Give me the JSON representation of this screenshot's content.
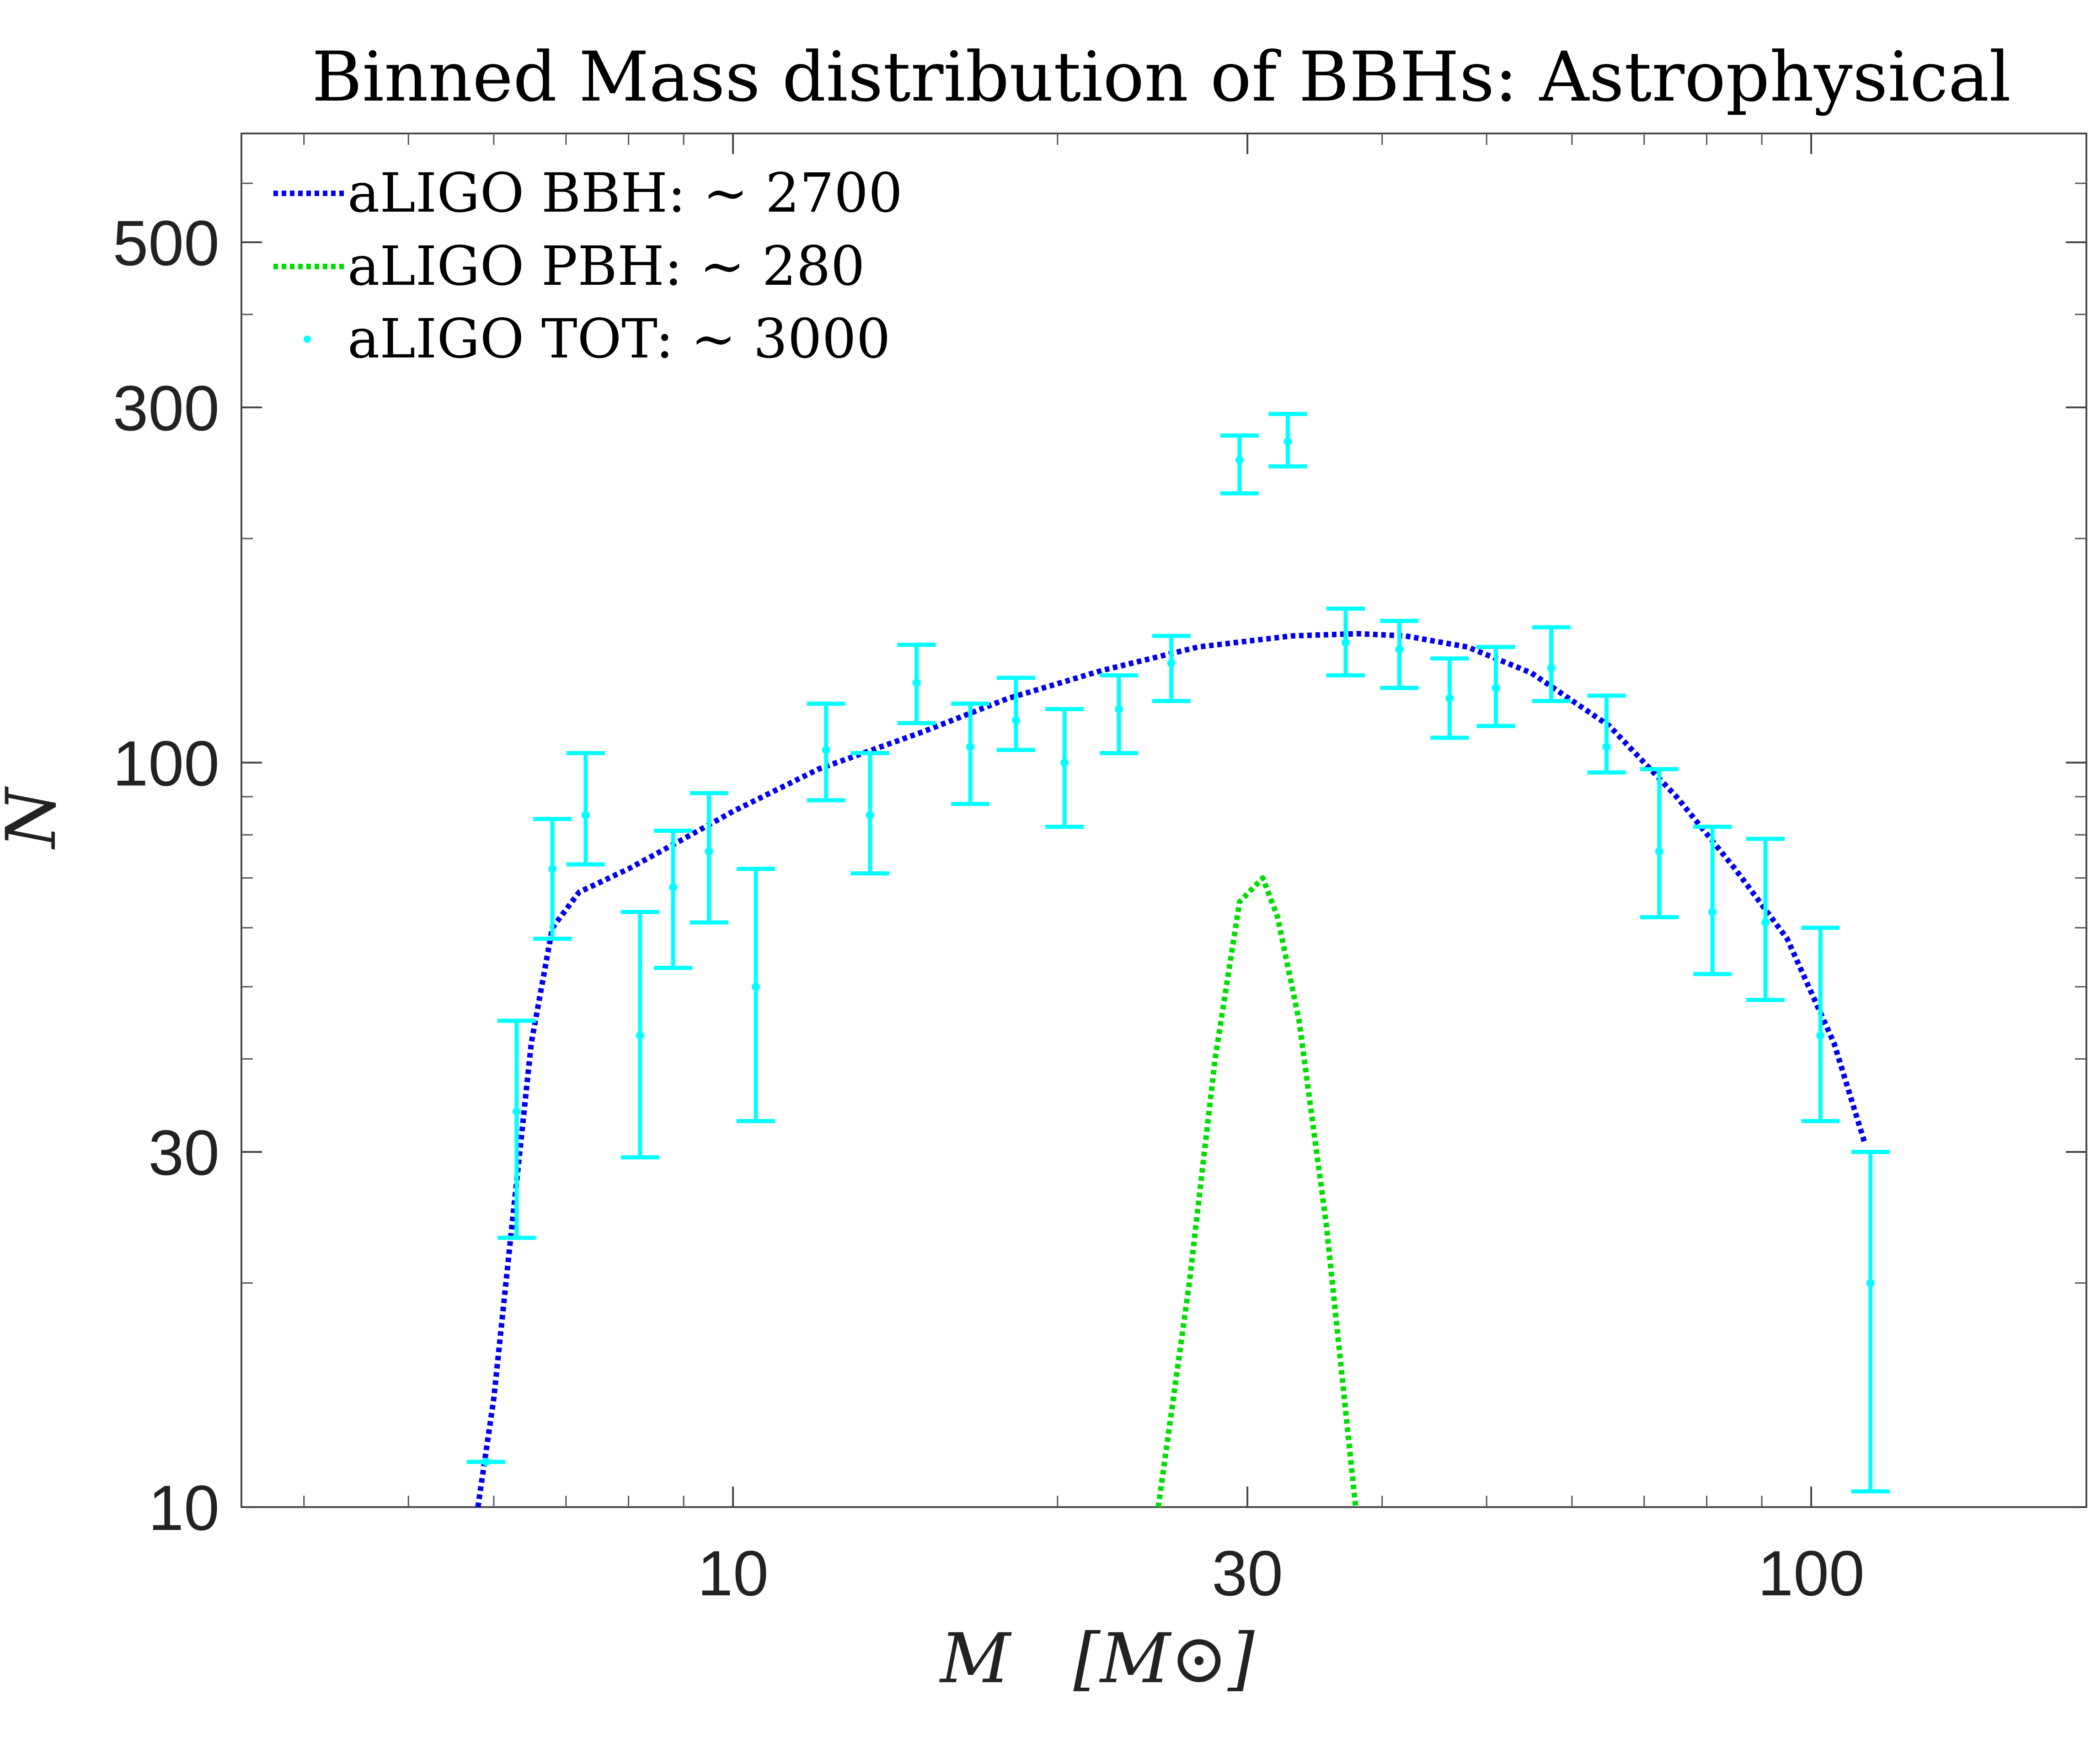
{
  "chart_data": {
    "type": "line",
    "title": "Binned Mass distribution of BBHs: Astrophysical",
    "xlabel": "M  [M⊙]",
    "xlabel_symbol": "M",
    "xlabel_unit": "[M⊙]",
    "ylabel": "N",
    "xscale": "log",
    "yscale": "log",
    "xlim": [
      3.5,
      180
    ],
    "ylim": [
      10,
      700
    ],
    "x_ticks": [
      10,
      30,
      100
    ],
    "x_tick_labels": [
      "10",
      "30",
      "100"
    ],
    "y_ticks": [
      10,
      30,
      100,
      300,
      500
    ],
    "y_tick_labels": [
      "10",
      "30",
      "100",
      "300",
      "500"
    ],
    "legend_position": "top-left",
    "series": [
      {
        "name": "aLIGO BBH: ∼ 2700",
        "style": "dotted-line",
        "color": "#0000ee",
        "x": [
          5.8,
          6.0,
          6.2,
          6.5,
          6.8,
          7.2,
          8.0,
          9.0,
          10.0,
          12.0,
          15.0,
          18.0,
          22.0,
          27.0,
          33.0,
          38.0,
          42.0,
          48.0,
          55.0,
          65.0,
          75.0,
          85.0,
          95.0,
          105.0,
          112.0
        ],
        "y": [
          10,
          14,
          22,
          42,
          60,
          67,
          72,
          79,
          86,
          98,
          110,
          122,
          133,
          143,
          148,
          149,
          148,
          143,
          132,
          112,
          90,
          72,
          58,
          42,
          31
        ]
      },
      {
        "name": "aLIGO PBH: ∼ 280",
        "style": "dotted-line",
        "color": "#00dd00",
        "x": [
          24.8,
          26.5,
          28.0,
          29.5,
          31.0,
          32.0,
          33.5,
          35.5,
          37.8
        ],
        "y": [
          10,
          20,
          40,
          65,
          70,
          62,
          45,
          24,
          10
        ]
      },
      {
        "name": "aLIGO TOT: ∼ 3000",
        "style": "points-with-errorbars",
        "color": "#00ffff",
        "x": [
          5.9,
          6.3,
          6.8,
          7.3,
          8.2,
          8.8,
          9.5,
          10.5,
          12.2,
          13.4,
          14.8,
          16.6,
          18.3,
          20.3,
          22.8,
          25.5,
          29.5,
          32.7,
          37.0,
          41.5,
          46.2,
          51.0,
          57.4,
          64.6,
          72.3,
          81.0,
          90.7,
          102.0,
          113.5
        ],
        "y": [
          11.5,
          34,
          72,
          85,
          43,
          68,
          76,
          50,
          104,
          85,
          128,
          105,
          114,
          100,
          118,
          136,
          255,
          270,
          145,
          142,
          122,
          126,
          134,
          105,
          76,
          63,
          61,
          43,
          20
        ],
        "y_low": [
          11.5,
          23,
          58,
          73,
          29.5,
          53,
          61,
          33,
          89,
          71,
          113,
          88,
          104,
          82,
          103,
          121,
          230,
          250,
          131,
          126,
          108,
          112,
          121,
          97,
          62,
          52,
          48,
          33,
          10.5
        ],
        "y_high": [
          11.5,
          45,
          84,
          103,
          63,
          81,
          91,
          72,
          120,
          103,
          144,
          120,
          130,
          118,
          131,
          148,
          275,
          294,
          161,
          155,
          138,
          143,
          152,
          123,
          98,
          82,
          79,
          60,
          30
        ]
      }
    ]
  },
  "legend": {
    "bbh_label": "aLIGO BBH: ∼ 2700",
    "pbh_label": "aLIGO PBH: ∼ 280",
    "tot_label": "aLIGO TOT: ∼ 3000"
  },
  "colors": {
    "bbh": "#0000ee",
    "pbh": "#00dd00",
    "tot": "#00ffff",
    "axes": "#333333"
  }
}
